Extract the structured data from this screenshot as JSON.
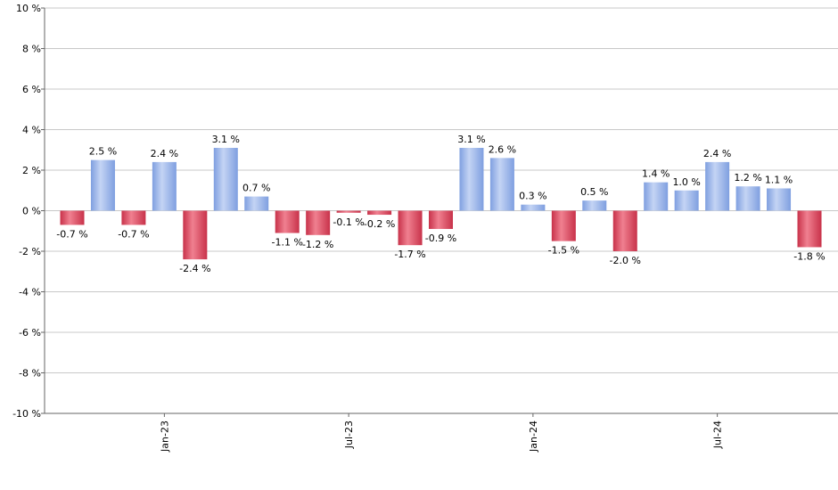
{
  "chart_data": {
    "type": "bar",
    "categories": [
      null,
      null,
      null,
      "Jan-23",
      null,
      null,
      null,
      null,
      null,
      "Jul-23",
      null,
      null,
      null,
      null,
      null,
      "Jan-24",
      null,
      null,
      null,
      null,
      null,
      "Jul-24",
      null,
      null,
      null
    ],
    "values": [
      -0.7,
      2.5,
      -0.7,
      2.4,
      -2.4,
      3.1,
      0.7,
      -1.1,
      -1.2,
      -0.1,
      -0.2,
      -1.7,
      -0.9,
      3.1,
      2.6,
      0.3,
      -1.5,
      0.5,
      -2.0,
      1.4,
      1.0,
      2.4,
      1.2,
      1.1,
      -1.8
    ],
    "value_labels": [
      "-0.7 %",
      "2.5 %",
      "-0.7 %",
      "2.4 %",
      "-2.4 %",
      "3.1 %",
      "0.7 %",
      "-1.1 %",
      "-1.2 %",
      "-0.1 %",
      "-0.2 %",
      "-1.7 %",
      "-0.9 %",
      "3.1 %",
      "2.6 %",
      "0.3 %",
      "-1.5 %",
      "0.5 %",
      "-2.0 %",
      "1.4 %",
      "1.0 %",
      "2.4 %",
      "1.2 %",
      "1.1 %",
      "-1.8 %"
    ],
    "positive_color": "#7f9fe0",
    "negative_color": "#c8324a",
    "ylim": [
      -10,
      10
    ],
    "yticks": [
      {
        "value": -10,
        "label": "-10 %"
      },
      {
        "value": -8,
        "label": "-8 %"
      },
      {
        "value": -6,
        "label": "-6 %"
      },
      {
        "value": -4,
        "label": "-4 %"
      },
      {
        "value": -2,
        "label": "-2 %"
      },
      {
        "value": 0,
        "label": "0 %"
      },
      {
        "value": 2,
        "label": "2 %"
      },
      {
        "value": 4,
        "label": "4 %"
      },
      {
        "value": 6,
        "label": "6 %"
      },
      {
        "value": 8,
        "label": "8 %"
      },
      {
        "value": 10,
        "label": "10 %"
      }
    ],
    "grid": true
  }
}
